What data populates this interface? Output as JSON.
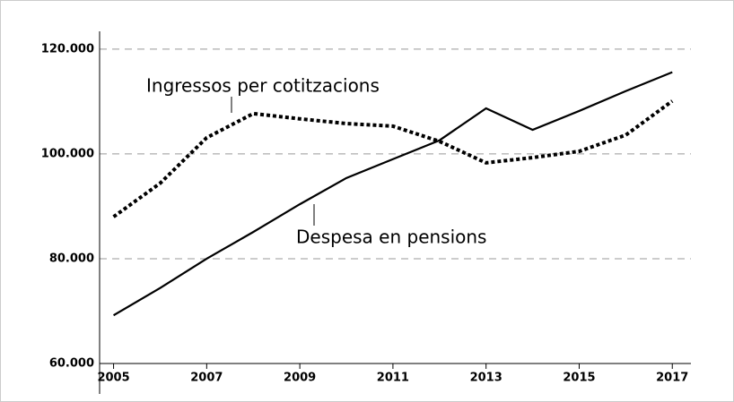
{
  "chart_data": {
    "type": "line",
    "x": [
      2005,
      2006,
      2007,
      2008,
      2009,
      2010,
      2011,
      2012,
      2013,
      2014,
      2015,
      2016,
      2017
    ],
    "series": [
      {
        "name": "Despesa en pensions",
        "color": "#000000",
        "style": "solid",
        "values": [
          69200,
          74400,
          80000,
          85100,
          90400,
          95400,
          99000,
          102600,
          108700,
          104600,
          108200,
          112000,
          115600
        ]
      },
      {
        "name": "Ingressos per cotitzacions",
        "color": "#000000",
        "style": "dotted",
        "values": [
          88000,
          94400,
          103100,
          107700,
          106700,
          105800,
          105300,
          102400,
          98300,
          99300,
          100500,
          103600,
          110100
        ]
      }
    ],
    "xlim": [
      2004.7,
      2017.4
    ],
    "xticks": [
      2005,
      2007,
      2009,
      2011,
      2013,
      2015,
      2017
    ],
    "ylim": [
      60000,
      123400
    ],
    "yticks": [
      {
        "value": 60000,
        "label": "60.000"
      },
      {
        "value": 80000,
        "label": "80.000"
      },
      {
        "value": 100000,
        "label": "100.000"
      },
      {
        "value": 120000,
        "label": "120.000"
      }
    ],
    "grid": true
  }
}
